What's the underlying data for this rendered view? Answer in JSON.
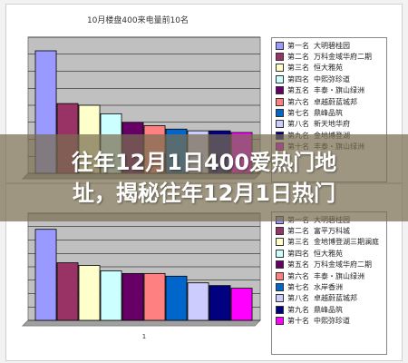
{
  "banner": {
    "line1": "往年12月1日400爱热门地",
    "line2": "址，揭秘往年12月1日热门"
  },
  "chart_data": [
    {
      "type": "bar",
      "title": "10月楼盘400来电量前10名",
      "xlabel": "",
      "ylabel": "",
      "ylim": [
        0,
        8
      ],
      "grid": true,
      "legend_position": "right",
      "x_tick_labels": [],
      "categories": [
        "大明碧桂园",
        "万科金域华府二期",
        "恒大雅苑",
        "中熙弥珍道",
        "丰泰・旗山绿洲",
        "卓越蔚蓝城邦",
        "鼎峰品筑",
        "新天地华府",
        "金地博登湖",
        "丰泰・旗山绿洲"
      ],
      "ranks": [
        "第一名",
        "第二名",
        "第三名",
        "第四名",
        "第五名",
        "第六名",
        "第七名",
        "第八名",
        "第九名",
        "第十名"
      ],
      "values": [
        7.2,
        4.1,
        4.0,
        3.5,
        3.0,
        2.8,
        2.6,
        2.5,
        2.5,
        2.4
      ],
      "colors": [
        "#9999ff",
        "#993366",
        "#ffffcc",
        "#ccffff",
        "#660066",
        "#ff8080",
        "#0066cc",
        "#ccccff",
        "#000080",
        "#ff00ff"
      ]
    },
    {
      "type": "bar",
      "title": "",
      "xlabel": "",
      "ylabel": "",
      "ylim": [
        0,
        8
      ],
      "grid": true,
      "legend_position": "right",
      "x_tick_labels": [
        "1"
      ],
      "categories": [
        "大明碧桂园",
        "富平万科城",
        "金地博登湖三期澜庭",
        "恒大雅苑",
        "万科金域华府二期",
        "丰泰・旗山绿洲",
        "水岸香洲",
        "卓越蔚蓝城邦",
        "鼎峰品筑",
        "中熙弥珍道"
      ],
      "ranks": [
        "第一名",
        "第二名",
        "第三名",
        "第四名",
        "第五名",
        "第六名",
        "第七名",
        "第八名",
        "第九名",
        "第十名"
      ],
      "values": [
        6.8,
        4.3,
        4.1,
        3.7,
        3.5,
        3.5,
        3.3,
        2.8,
        2.6,
        2.4
      ],
      "colors": [
        "#9999ff",
        "#993366",
        "#ffffcc",
        "#ccffff",
        "#660066",
        "#ff8080",
        "#0066cc",
        "#ccccff",
        "#000080",
        "#ff00ff"
      ]
    }
  ]
}
